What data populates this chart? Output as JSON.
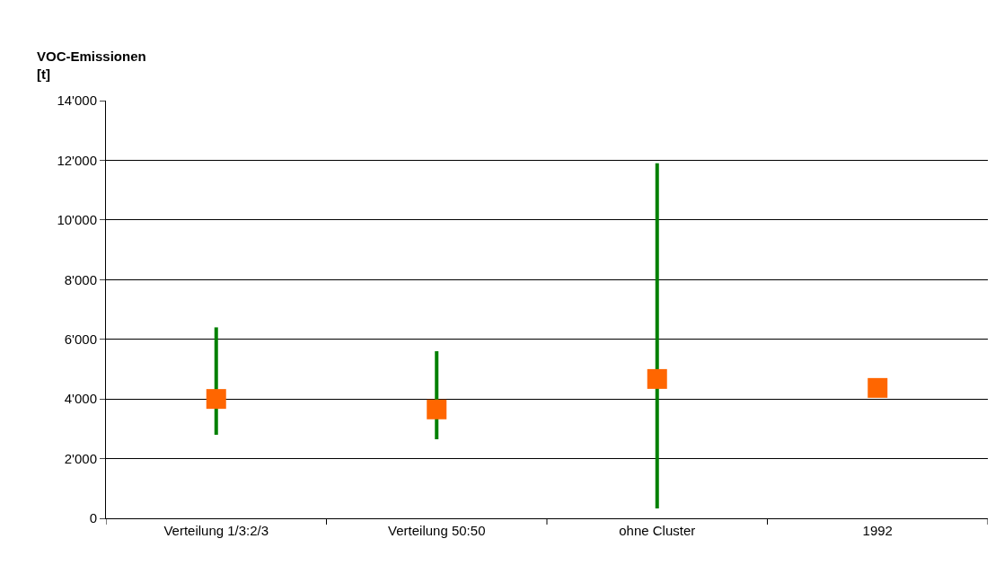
{
  "chart_data": {
    "type": "scatter",
    "ylabel": "VOC-Emissionen\n[t]",
    "categories": [
      "Verteilung 1/3:2/3",
      "Verteilung 50:50",
      "ohne Cluster",
      "1992"
    ],
    "series": [
      {
        "color": "#ff6600",
        "values": [
          4000,
          3650,
          4670,
          4370
        ],
        "errors": [
          [
            2800,
            6400
          ],
          [
            2650,
            5600
          ],
          [
            330,
            11900
          ],
          null
        ]
      }
    ],
    "ylim": [
      0,
      14000
    ],
    "yticks": [
      0,
      {
        "value": 2000,
        "label": "2'000"
      },
      {
        "value": 4000,
        "label": "4'000"
      },
      {
        "value": 6000,
        "label": "6'000"
      },
      {
        "value": 8000,
        "label": "8'000"
      },
      {
        "value": 10000,
        "label": "10'000"
      },
      {
        "value": 12000,
        "label": "12'000"
      },
      {
        "value": 14000,
        "label": "14'000"
      }
    ],
    "grid": "y",
    "marker": "square"
  }
}
